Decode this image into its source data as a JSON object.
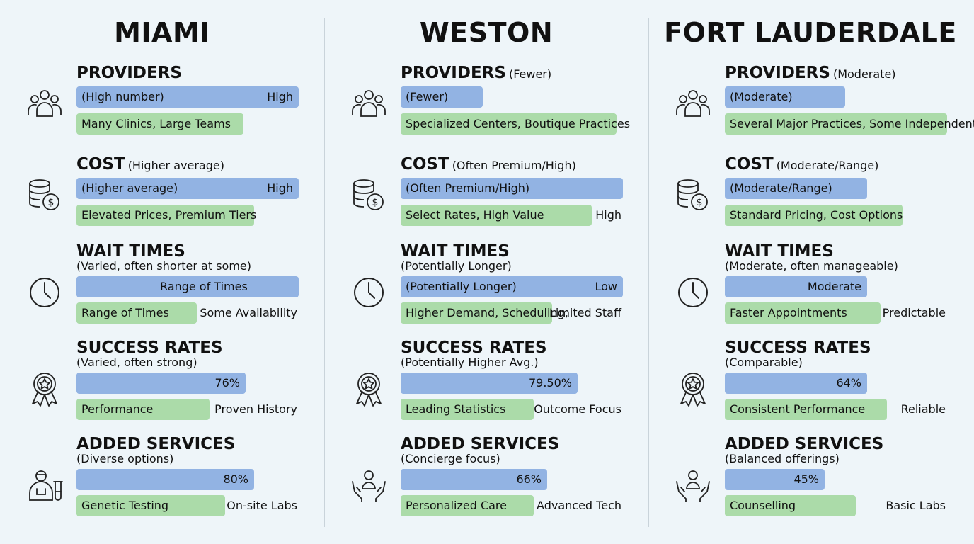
{
  "chart_data": {
    "type": "bar",
    "cities": [
      {
        "name": "MIAMI",
        "sections": [
          {
            "title": "PROVIDERS",
            "qualifier": "",
            "subtitle": "",
            "icon": "people-group-icon",
            "blue": {
              "text": "(High number)",
              "right": "High",
              "value": 1.0
            },
            "green": {
              "text": "Many Clinics, Large Teams",
              "value": 0.75
            },
            "outside": ""
          },
          {
            "title": "COST",
            "qualifier": "(Higher average)",
            "subtitle": "",
            "icon": "coins-dollar-icon",
            "blue": {
              "text": "(Higher average)",
              "right": "High",
              "value": 1.0
            },
            "green": {
              "text": "Elevated Prices, Premium Tiers",
              "value": 0.8
            },
            "outside": ""
          },
          {
            "title": "WAIT TIMES",
            "qualifier": "",
            "subtitle": "(Varied, often shorter at some)",
            "icon": "clock-icon",
            "blue": {
              "text": "",
              "center": "Range of Times",
              "value": 1.0
            },
            "green": {
              "text": "Range of Times",
              "value": 0.54
            },
            "outside": "Some Availability"
          },
          {
            "title": "SUCCESS RATES",
            "qualifier": "",
            "subtitle": "(Varied, often strong)",
            "icon": "award-ribbon-icon",
            "blue": {
              "text": "",
              "right": "76%",
              "value": 76
            },
            "green": {
              "text": "Performance",
              "value": 0.6
            },
            "outside": "Proven History"
          },
          {
            "title": "ADDED SERVICES",
            "qualifier": "",
            "subtitle": "(Diverse options)",
            "icon": "doctor-lab-icon",
            "blue": {
              "text": "",
              "right": "80%",
              "value": 80
            },
            "green": {
              "text": "Genetic Testing",
              "value": 0.67
            },
            "outside": "On-site Labs"
          }
        ]
      },
      {
        "name": "WESTON",
        "sections": [
          {
            "title": "PROVIDERS",
            "qualifier": "(Fewer)",
            "subtitle": "",
            "icon": "people-group-icon",
            "blue": {
              "text": "(Fewer)",
              "right": "",
              "value": 0.37
            },
            "green": {
              "text": "Specialized Centers, Boutique Practices",
              "value": 0.97
            },
            "outside": ""
          },
          {
            "title": "COST",
            "qualifier": "(Often Premium/High)",
            "subtitle": "",
            "icon": "coins-dollar-icon",
            "blue": {
              "text": "(Often Premium/High)",
              "right": "",
              "value": 1.0
            },
            "green": {
              "text": "Select Rates, High Value",
              "value": 0.86
            },
            "outside": "High"
          },
          {
            "title": "WAIT TIMES",
            "qualifier": "",
            "subtitle": "(Potentially Longer)",
            "icon": "clock-icon",
            "blue": {
              "text": "(Potentially Longer)",
              "right": "Low",
              "value": 1.0
            },
            "green": {
              "text": "Higher Demand, Scheduling,",
              "value": 0.68
            },
            "outside": "Limited Staff"
          },
          {
            "title": "SUCCESS RATES",
            "qualifier": "",
            "subtitle": "(Potentially Higher Avg.)",
            "icon": "award-ribbon-icon",
            "blue": {
              "text": "",
              "right": "79.50%",
              "value": 79.5
            },
            "green": {
              "text": "Leading Statistics",
              "value": 0.6
            },
            "outside": "Outcome Focus"
          },
          {
            "title": "ADDED SERVICES",
            "qualifier": "",
            "subtitle": "(Concierge focus)",
            "icon": "hands-person-icon",
            "blue": {
              "text": "",
              "right": "66%",
              "value": 66
            },
            "green": {
              "text": "Personalized Care",
              "value": 0.6
            },
            "outside": "Advanced Tech"
          }
        ]
      },
      {
        "name": "FORT LAUDERDALE",
        "sections": [
          {
            "title": "PROVIDERS",
            "qualifier": "(Moderate)",
            "subtitle": "",
            "icon": "people-group-icon",
            "blue": {
              "text": "(Moderate)",
              "right": "",
              "value": 0.54
            },
            "green": {
              "text": "Several Major Practices, Some Independents",
              "value": 1.0
            },
            "outside": ""
          },
          {
            "title": "COST",
            "qualifier": "(Moderate/Range)",
            "subtitle": "",
            "icon": "coins-dollar-icon",
            "blue": {
              "text": "(Moderate/Range)",
              "right": "",
              "value": 0.64
            },
            "green": {
              "text": "Standard Pricing, Cost Options",
              "value": 0.8
            },
            "outside": ""
          },
          {
            "title": "WAIT TIMES",
            "qualifier": "",
            "subtitle": "(Moderate, often manageable)",
            "icon": "clock-icon",
            "blue": {
              "text": "",
              "right": "Moderate",
              "value": 0.64
            },
            "green": {
              "text": "Faster Appointments",
              "value": 0.7
            },
            "outside": "Predictable"
          },
          {
            "title": "SUCCESS RATES",
            "qualifier": "",
            "subtitle": "(Comparable)",
            "icon": "award-ribbon-icon",
            "blue": {
              "text": "",
              "right": "64%",
              "value": 64
            },
            "green": {
              "text": "Consistent Performance",
              "value": 0.73
            },
            "outside": "Reliable"
          },
          {
            "title": "ADDED SERVICES",
            "qualifier": "",
            "subtitle": "(Balanced offerings)",
            "icon": "hands-person-icon",
            "blue": {
              "text": "",
              "right": "45%",
              "value": 45
            },
            "green": {
              "text": "Counselling",
              "value": 0.59
            },
            "outside": "Basic Labs"
          }
        ]
      }
    ]
  },
  "colors": {
    "blue_bar": "#92b3e3",
    "green_bar": "#abdba9",
    "background": "#eef5f9",
    "icon_stroke": "#222222"
  }
}
